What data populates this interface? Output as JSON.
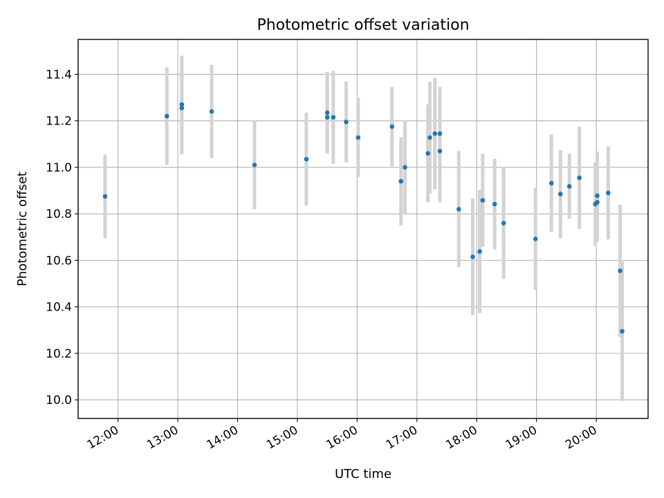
{
  "chart_data": {
    "type": "scatter",
    "title": "Photometric offset variation",
    "xlabel": "UTC time",
    "ylabel": "Photometric offset",
    "x_tick_labels": [
      "12:00",
      "13:00",
      "14:00",
      "15:00",
      "16:00",
      "17:00",
      "18:00",
      "19:00",
      "20:00"
    ],
    "y_tick_labels": [
      "10.0",
      "10.2",
      "10.4",
      "10.6",
      "10.8",
      "11.0",
      "11.2",
      "11.4"
    ],
    "x_ticks": [
      "12:00",
      "13:00",
      "14:00",
      "15:00",
      "16:00",
      "17:00",
      "18:00",
      "19:00",
      "20:00"
    ],
    "y_ticks": [
      10.0,
      10.2,
      10.4,
      10.6,
      10.8,
      11.0,
      11.2,
      11.4
    ],
    "xlim": [
      "11:20",
      "20:52"
    ],
    "ylim": [
      9.92,
      11.55
    ],
    "grid": true,
    "colors": {
      "point": "#1f77b4",
      "errorbar": "#d3d3d3"
    },
    "points": [
      {
        "x": "11:47",
        "y": 10.875,
        "err": 0.18
      },
      {
        "x": "12:49",
        "y": 11.22,
        "err": 0.21
      },
      {
        "x": "13:04",
        "y": 11.27,
        "err": 0.21
      },
      {
        "x": "13:04",
        "y": 11.255,
        "err": 0.2
      },
      {
        "x": "13:34",
        "y": 11.24,
        "err": 0.2
      },
      {
        "x": "14:17",
        "y": 11.01,
        "err": 0.19
      },
      {
        "x": "15:09",
        "y": 11.035,
        "err": 0.2
      },
      {
        "x": "15:30",
        "y": 11.235,
        "err": 0.175
      },
      {
        "x": "15:30",
        "y": 11.215,
        "err": 0.155
      },
      {
        "x": "15:36",
        "y": 11.215,
        "err": 0.2
      },
      {
        "x": "15:49",
        "y": 11.195,
        "err": 0.175
      },
      {
        "x": "16:01",
        "y": 11.128,
        "err": 0.17
      },
      {
        "x": "16:35",
        "y": 11.175,
        "err": 0.17
      },
      {
        "x": "16:44",
        "y": 10.94,
        "err": 0.19
      },
      {
        "x": "16:48",
        "y": 11.0,
        "err": 0.2
      },
      {
        "x": "17:11",
        "y": 11.06,
        "err": 0.21
      },
      {
        "x": "17:13",
        "y": 11.128,
        "err": 0.24
      },
      {
        "x": "17:18",
        "y": 11.145,
        "err": 0.24
      },
      {
        "x": "17:23",
        "y": 11.07,
        "err": 0.22
      },
      {
        "x": "17:23",
        "y": 11.145,
        "err": 0.2
      },
      {
        "x": "17:42",
        "y": 10.82,
        "err": 0.25
      },
      {
        "x": "17:56",
        "y": 10.615,
        "err": 0.25
      },
      {
        "x": "18:03",
        "y": 10.638,
        "err": 0.265
      },
      {
        "x": "18:06",
        "y": 10.858,
        "err": 0.2
      },
      {
        "x": "18:18",
        "y": 10.842,
        "err": 0.195
      },
      {
        "x": "18:27",
        "y": 10.76,
        "err": 0.24
      },
      {
        "x": "18:59",
        "y": 10.692,
        "err": 0.22
      },
      {
        "x": "19:15",
        "y": 10.932,
        "err": 0.21
      },
      {
        "x": "19:24",
        "y": 10.885,
        "err": 0.19
      },
      {
        "x": "19:33",
        "y": 10.918,
        "err": 0.14
      },
      {
        "x": "19:43",
        "y": 10.955,
        "err": 0.22
      },
      {
        "x": "19:59",
        "y": 10.842,
        "err": 0.18
      },
      {
        "x": "20:01",
        "y": 10.85,
        "err": 0.17
      },
      {
        "x": "20:01",
        "y": 10.878,
        "err": 0.19
      },
      {
        "x": "20:12",
        "y": 10.89,
        "err": 0.2
      },
      {
        "x": "20:24",
        "y": 10.555,
        "err": 0.285
      },
      {
        "x": "20:26",
        "y": 10.295,
        "err": 0.3
      }
    ]
  }
}
